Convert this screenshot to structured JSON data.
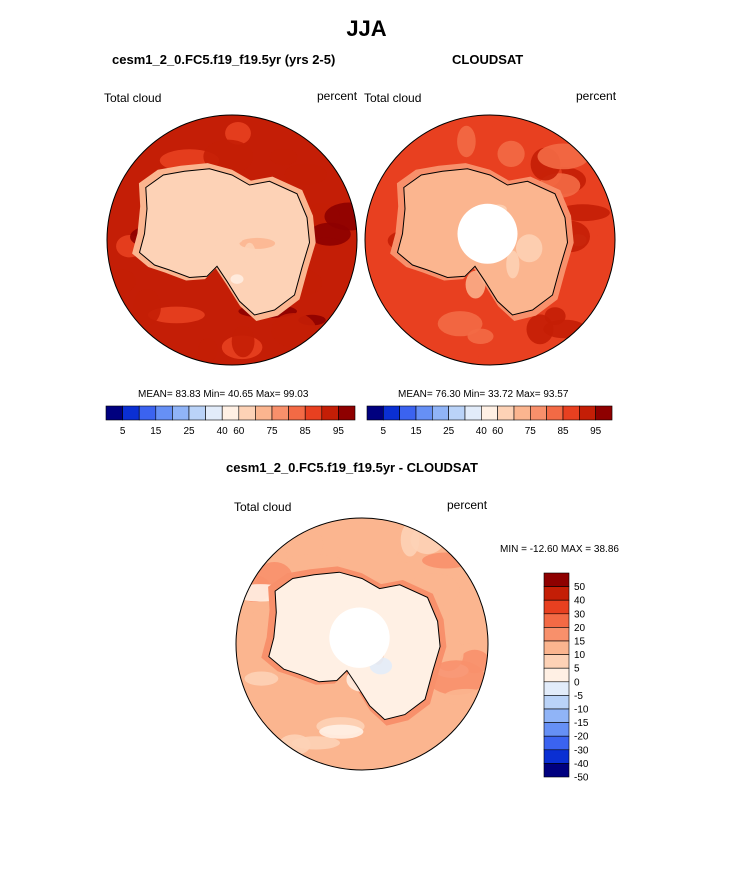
{
  "title": "JJA",
  "colors": {
    "levels": [
      "#00007f",
      "#0a2fd3",
      "#3b63f0",
      "#6690f5",
      "#90b4f7",
      "#bad3f8",
      "#e2ecfa",
      "#fff0e4",
      "#fdd2b6",
      "#fbb58f",
      "#f8906b",
      "#f36a45",
      "#e84020",
      "#c41e06",
      "#8e0000"
    ],
    "coast": "#000000"
  },
  "chart_data": [
    {
      "type": "heatmap",
      "projection": "south-polar-stereographic",
      "title": "cesm1_2_0.FC5.f19_f19.5yr (yrs 2-5)",
      "variable": "Total cloud",
      "units": "percent",
      "stats": {
        "mean": 83.83,
        "min": 40.65,
        "max": 99.03
      },
      "stats_text": "MEAN=  83.83  Min=  40.65  Max=  99.03",
      "field_summary": {
        "ocean": 90,
        "coastal_ridge": 70,
        "interior": 55,
        "polar_hole": false
      },
      "colorbar": {
        "orientation": "horizontal",
        "tick_labels": [
          "5",
          "15",
          "25",
          "40",
          "60",
          "75",
          "85",
          "95"
        ]
      }
    },
    {
      "type": "heatmap",
      "projection": "south-polar-stereographic",
      "title": "CLOUDSAT",
      "variable": "Total cloud",
      "units": "percent",
      "stats": {
        "mean": 76.3,
        "min": 33.72,
        "max": 93.57
      },
      "stats_text": "MEAN=  76.30  Min=  33.72  Max=  93.57",
      "field_summary": {
        "ocean": 82,
        "coastal_ridge": 75,
        "interior": 62,
        "polar_hole": true
      },
      "colorbar": {
        "orientation": "horizontal",
        "tick_labels": [
          "5",
          "15",
          "25",
          "40",
          "60",
          "75",
          "85",
          "95"
        ]
      }
    },
    {
      "type": "heatmap",
      "projection": "south-polar-stereographic",
      "title": "cesm1_2_0.FC5.f19_f19.5yr - CLOUDSAT",
      "variable": "Total cloud",
      "units": "percent",
      "stats": {
        "min": -12.6,
        "max": 38.86
      },
      "stats_text": "MIN = -12.60 MAX =  38.86",
      "field_summary": {
        "ocean": 6,
        "coastal_ridge": 12,
        "interior": -4,
        "polar_hole": true
      },
      "colorbar": {
        "orientation": "vertical",
        "tick_labels": [
          "50",
          "40",
          "30",
          "20",
          "15",
          "10",
          "5",
          "0",
          "-5",
          "-10",
          "-15",
          "-20",
          "-30",
          "-40",
          "-50"
        ]
      }
    }
  ]
}
